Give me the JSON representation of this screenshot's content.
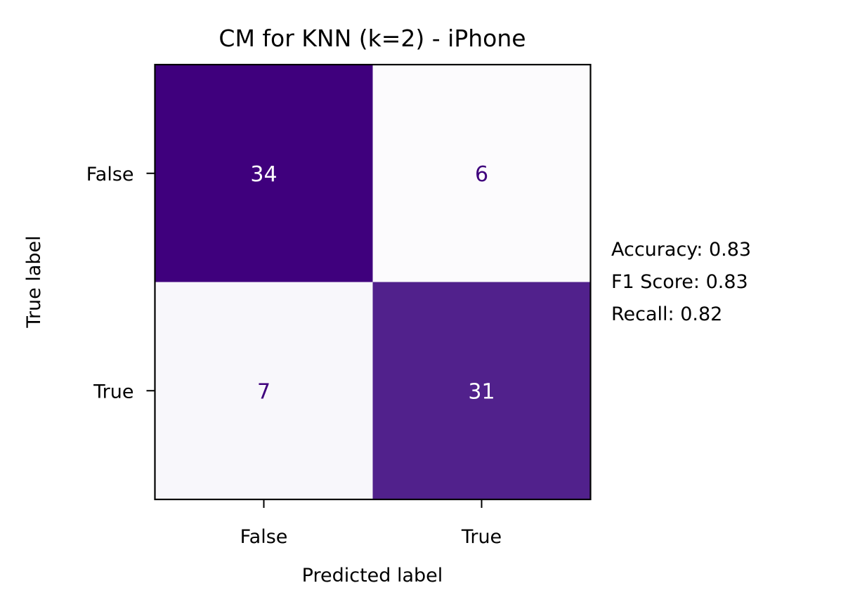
{
  "chart_data": {
    "type": "heatmap",
    "title": "CM for KNN (k=2) - iPhone",
    "xlabel": "Predicted label",
    "ylabel": "True label",
    "x_categories": [
      "False",
      "True"
    ],
    "y_categories": [
      "False",
      "True"
    ],
    "matrix": [
      [
        34,
        6
      ],
      [
        7,
        31
      ]
    ],
    "colormap": "Purples",
    "metrics": [
      "Accuracy: 0.83",
      "F1 Score: 0.83",
      "Recall: 0.82"
    ]
  }
}
